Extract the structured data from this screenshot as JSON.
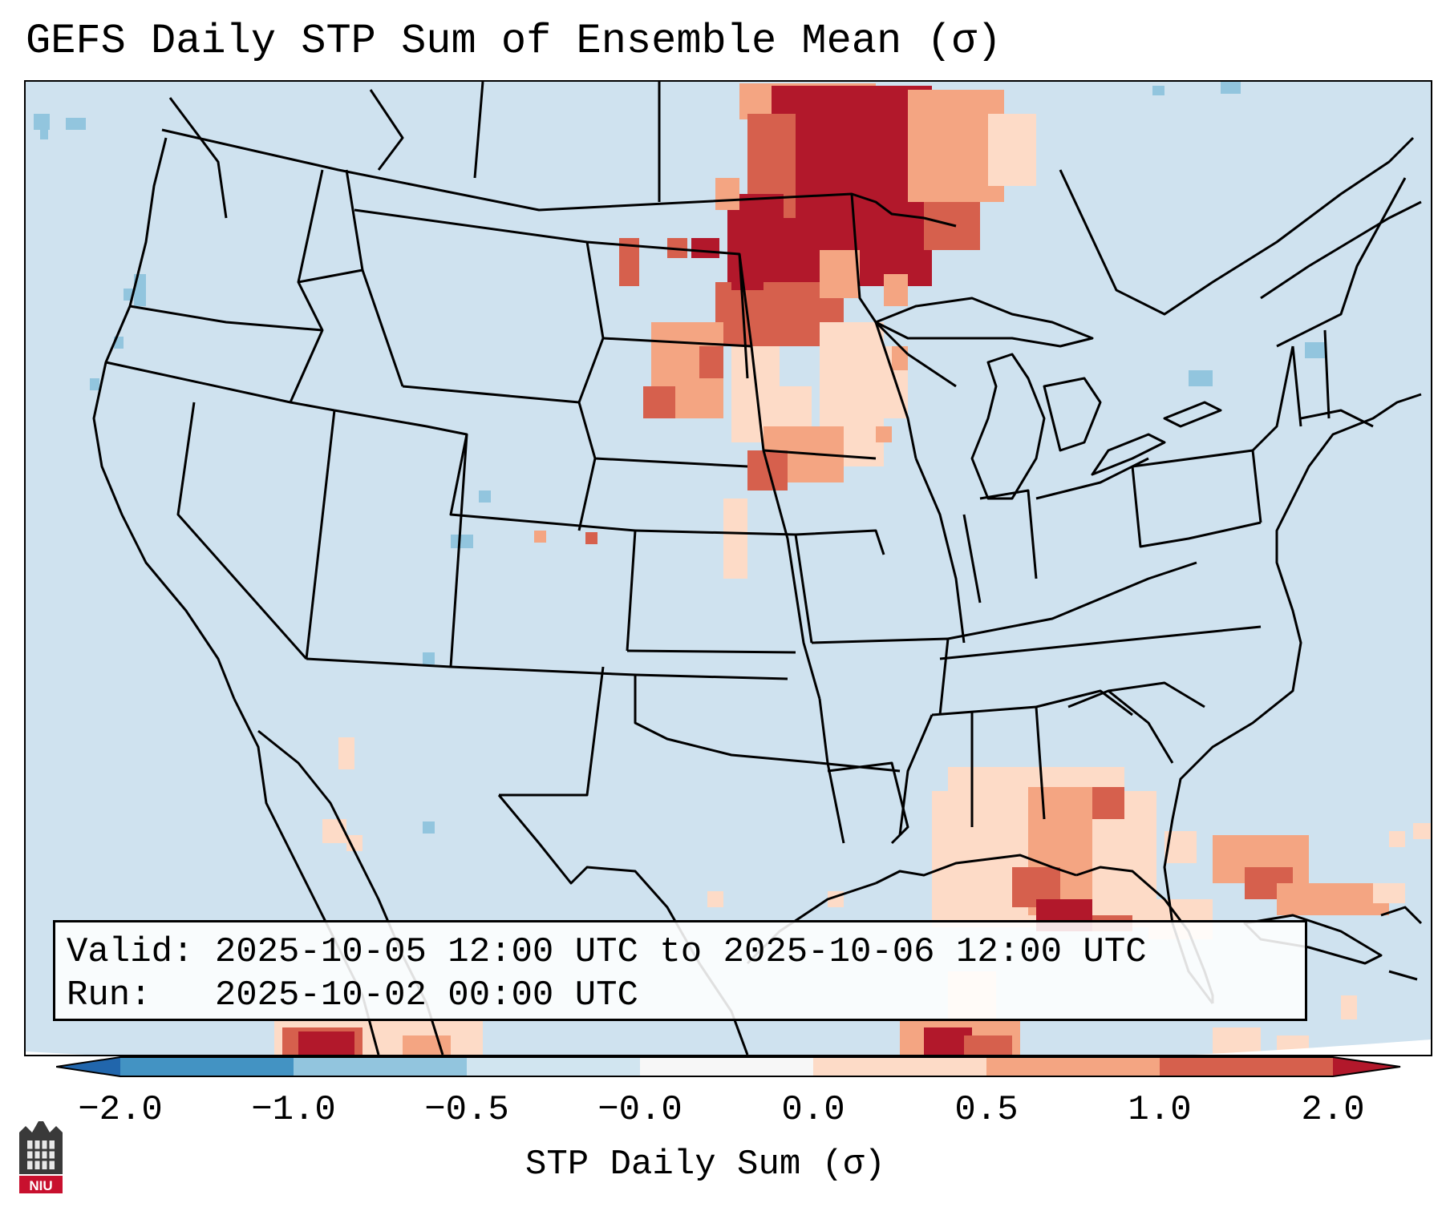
{
  "title": "GEFS Daily STP Sum of Ensemble Mean (σ)",
  "info": {
    "valid_label": "Valid:",
    "valid_value": "2025-10-05 12:00 UTC to 2025-10-06 12:00 UTC",
    "run_label": "Run:",
    "run_value": "2025-10-02 00:00 UTC"
  },
  "colorbar": {
    "label": "STP Daily Sum (σ)",
    "ticks": [
      "−2.0",
      "−1.0",
      "−0.5",
      "−0.0",
      "0.0",
      "0.5",
      "1.0",
      "2.0"
    ],
    "bin_colors": [
      "#4393c3",
      "#92c5de",
      "#d1e5f0",
      "#f7f7f7",
      "#fddbc7",
      "#f4a582",
      "#d6604d"
    ],
    "under_color": "#2166ac",
    "over_color": "#b2182b"
  },
  "logo": {
    "text": "NIU"
  },
  "map": {
    "ocean_color": "#cfe2ef",
    "region": "CONUS"
  }
}
